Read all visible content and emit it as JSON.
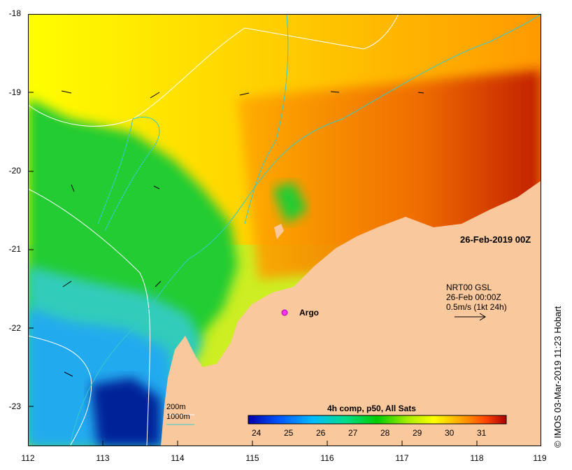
{
  "map": {
    "date_label": "26-Feb-2019 00Z",
    "product": {
      "line1": "NRT00 GSL",
      "line2": "26-Feb 00:00Z",
      "line3": "0.5m/s (1kt 24h)"
    },
    "argo_label": "Argo",
    "contour_legend": {
      "c200": "200m",
      "c1000": "1000m"
    },
    "colorbar_title": "4h comp, p50, All Sats",
    "colorbar_ticks": [
      "24",
      "25",
      "26",
      "27",
      "28",
      "29",
      "30",
      "31"
    ],
    "lat_ticks": [
      "-18",
      "-19",
      "-20",
      "-21",
      "-22",
      "-23"
    ],
    "lon_ticks": [
      "112",
      "113",
      "114",
      "115",
      "116",
      "117",
      "118",
      "119"
    ],
    "credit": "© IMOS 03-Mar-2019 11:23 Hobart",
    "colors": {
      "land": "#f9c89c",
      "contour_200": "#ffffff",
      "contour_1000": "#33cccc",
      "argo": "#ff33ff"
    }
  }
}
